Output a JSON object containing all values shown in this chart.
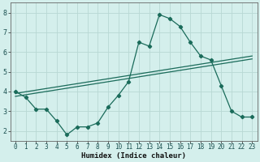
{
  "title": "",
  "xlabel": "Humidex (Indice chaleur)",
  "ylabel": "",
  "bg_color": "#d4efec",
  "grid_color": "#b8d8d4",
  "line_color": "#1a6b5a",
  "spine_color": "#666666",
  "x_ticks": [
    0,
    1,
    2,
    3,
    4,
    5,
    6,
    7,
    8,
    9,
    10,
    11,
    12,
    13,
    14,
    15,
    16,
    17,
    18,
    19,
    20,
    21,
    22,
    23
  ],
  "y_ticks": [
    2,
    3,
    4,
    5,
    6,
    7,
    8
  ],
  "ylim": [
    1.5,
    8.5
  ],
  "xlim": [
    -0.5,
    23.5
  ],
  "series1_x": [
    0,
    1,
    2,
    3,
    4,
    5,
    6,
    7,
    8,
    9,
    10,
    11,
    12,
    13,
    14,
    15,
    16,
    17,
    18,
    19,
    20,
    21,
    22,
    23
  ],
  "series1_y": [
    4.0,
    3.7,
    3.1,
    3.1,
    2.5,
    1.8,
    2.2,
    2.2,
    2.4,
    3.2,
    3.8,
    4.5,
    6.5,
    6.3,
    7.9,
    7.7,
    7.3,
    6.5,
    5.8,
    5.6,
    4.3,
    3.0,
    2.7,
    2.7
  ],
  "series2_x": [
    0,
    23
  ],
  "series2_y": [
    3.9,
    5.8
  ],
  "series3_x": [
    0,
    23
  ],
  "series3_y": [
    3.75,
    5.65
  ],
  "xlabel_fontsize": 6.5,
  "tick_fontsize": 5.5,
  "ytick_fontsize": 6.0,
  "marker_size": 2.2,
  "line_width": 0.9
}
